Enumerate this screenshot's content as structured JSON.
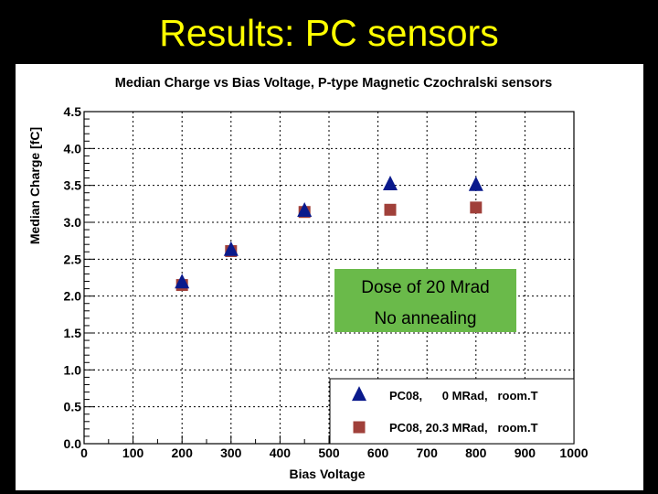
{
  "slide": {
    "title": "Results: PC sensors"
  },
  "chart_data": {
    "type": "scatter",
    "title": "Median Charge vs Bias Voltage, P-type Magnetic Czochralski sensors",
    "xlabel": "Bias Voltage",
    "ylabel": "Median Charge [fC]",
    "xlim": [
      0,
      1000
    ],
    "ylim": [
      0,
      4.5
    ],
    "x_ticks": [
      0,
      100,
      200,
      300,
      400,
      500,
      600,
      700,
      800,
      900,
      1000
    ],
    "y_ticks": [
      "0.0",
      "0.5",
      "1.0",
      "1.5",
      "2.0",
      "2.5",
      "3.0",
      "3.5",
      "4.0",
      "4.5"
    ],
    "grid": true,
    "legend_position": "bottom-right",
    "series": [
      {
        "name": "PC08,      0 MRad,   room.T",
        "marker": "triangle",
        "color": "#0a1a8c",
        "points": [
          {
            "x": 200,
            "y": 2.18
          },
          {
            "x": 300,
            "y": 2.62
          },
          {
            "x": 450,
            "y": 3.15
          },
          {
            "x": 625,
            "y": 3.51
          },
          {
            "x": 800,
            "y": 3.5
          }
        ]
      },
      {
        "name": "PC08, 20.3 MRad,   room.T",
        "marker": "square",
        "color": "#a0403a",
        "points": [
          {
            "x": 200,
            "y": 2.15
          },
          {
            "x": 300,
            "y": 2.61
          },
          {
            "x": 450,
            "y": 3.14
          },
          {
            "x": 625,
            "y": 3.17
          },
          {
            "x": 800,
            "y": 3.2
          }
        ]
      }
    ],
    "annotation": {
      "lines": [
        "Dose of 20 Mrad",
        "No annealing"
      ],
      "background": "#6aba4a"
    }
  }
}
